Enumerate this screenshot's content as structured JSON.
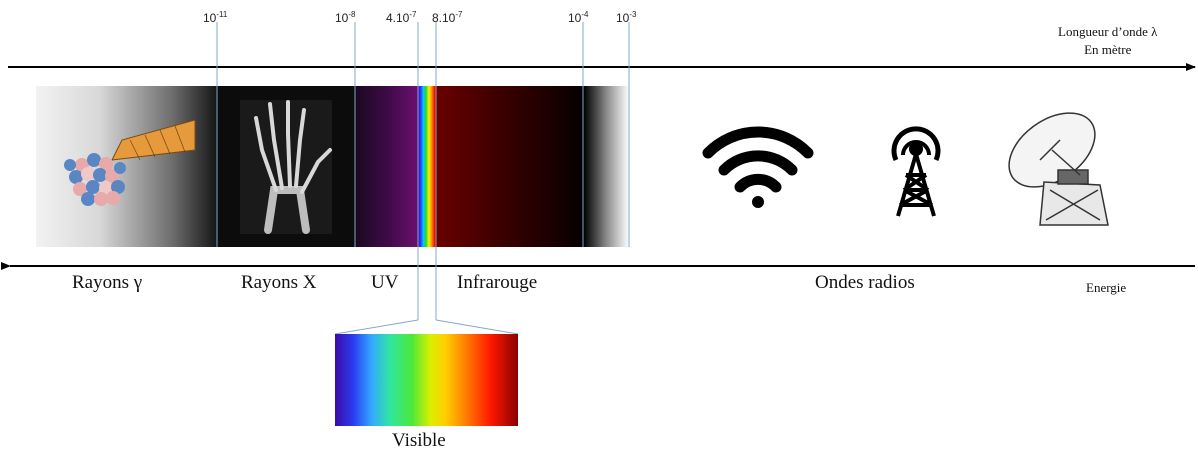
{
  "ticks": {
    "t1": {
      "base": "10",
      "exp": "-11"
    },
    "t2": {
      "base": "10",
      "exp": "-8"
    },
    "t3": {
      "base": "4.10",
      "exp": "-7"
    },
    "t4": {
      "base": "8.10",
      "exp": "-7"
    },
    "t5": {
      "base": "10",
      "exp": "-4"
    },
    "t6": {
      "base": "10",
      "exp": "-3"
    }
  },
  "axis": {
    "wavelength_line1": "Longueur d’onde λ",
    "wavelength_line2": "En mètre",
    "energy": "Energie"
  },
  "bands": {
    "gamma": "Rayons γ",
    "xray": "Rayons X",
    "uv": "UV",
    "infrared": "Infrarouge",
    "radio": "Ondes radios"
  },
  "visible_label": "Visible",
  "icons": [
    "atom-nucleus-icon",
    "xray-hand-icon",
    "wifi-icon",
    "radio-tower-icon",
    "satellite-dish-icon"
  ]
}
